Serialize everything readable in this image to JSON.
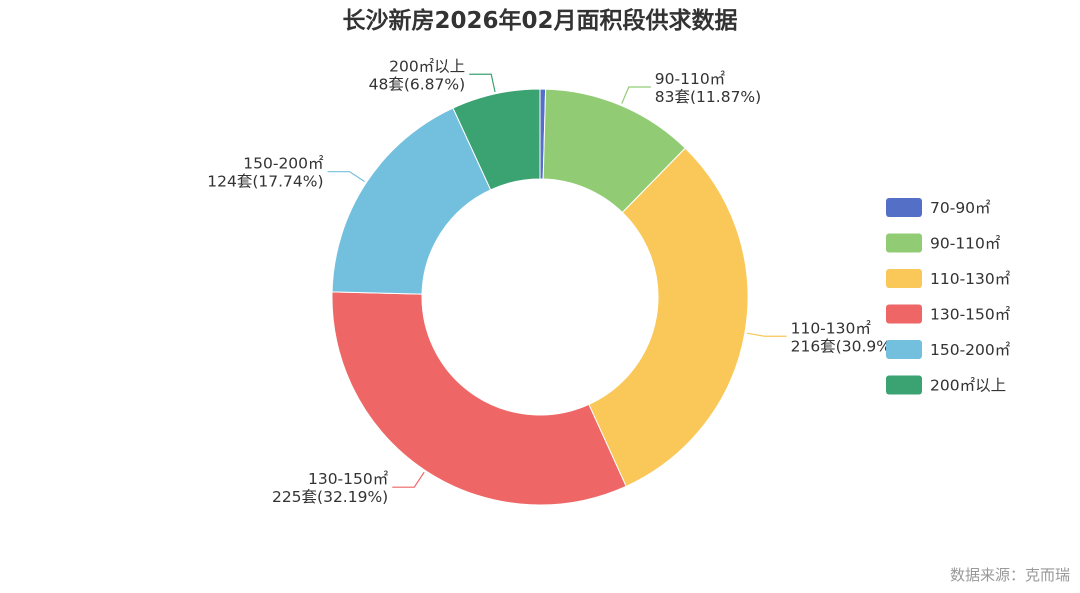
{
  "chart_data": {
    "type": "pie",
    "title": "长沙新房2026年02月面积段供求数据",
    "source": "数据来源：克而瑞",
    "unit": "套",
    "categories": [
      "70-90㎡",
      "90-110㎡",
      "110-130㎡",
      "130-150㎡",
      "150-200㎡",
      "200㎡以上"
    ],
    "values": [
      3,
      83,
      216,
      225,
      124,
      48
    ],
    "percents": [
      "0.43%",
      "11.87%",
      "30.9%",
      "32.19%",
      "17.74%",
      "6.87%"
    ],
    "slice_labels": [
      {
        "name": "",
        "value": ""
      },
      {
        "name": "90-110㎡",
        "value": "83套(11.87%)"
      },
      {
        "name": "110-130㎡",
        "value": "216套(30.9%)"
      },
      {
        "name": "130-150㎡",
        "value": "225套(32.19%)"
      },
      {
        "name": "150-200㎡",
        "value": "124套(17.74%)"
      },
      {
        "name": "200㎡以上",
        "value": "48套(6.87%)"
      }
    ],
    "colors": [
      "#5470c6",
      "#91cc75",
      "#fac858",
      "#ee6666",
      "#73c0de",
      "#3ba272"
    ],
    "legend": {
      "position": "right",
      "items": [
        "70-90㎡",
        "90-110㎡",
        "110-130㎡",
        "130-150㎡",
        "150-200㎡",
        "200㎡以上"
      ]
    },
    "donut": true
  }
}
